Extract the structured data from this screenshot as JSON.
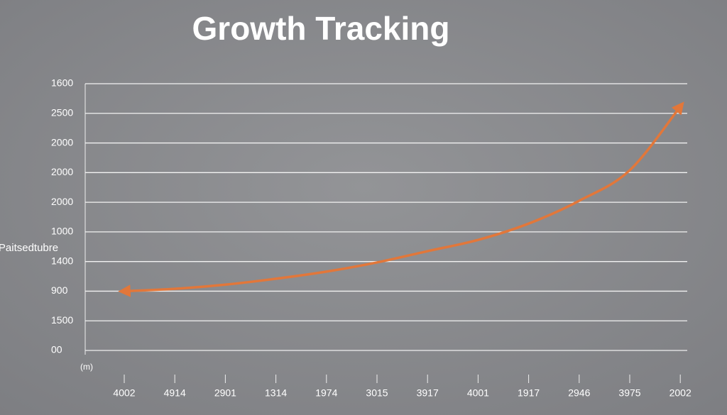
{
  "chart_data": {
    "type": "line",
    "title": "Growth Tracking",
    "y_label": "Paitsedtubre",
    "x_label": "(m)",
    "categories": [
      "4002",
      "4914",
      "2901",
      "1314",
      "1974",
      "3015",
      "3917",
      "4001",
      "1917",
      "2946",
      "3975",
      "2002"
    ],
    "values": [
      2.0,
      2.08,
      2.22,
      2.42,
      2.66,
      2.97,
      3.35,
      3.73,
      4.28,
      5.05,
      6.08,
      8.23
    ],
    "color": "#e2773a",
    "ylim": [
      0,
      9
    ],
    "yticks": [
      {
        "value": 0,
        "label": "00"
      },
      {
        "value": 1,
        "label": "1500"
      },
      {
        "value": 2,
        "label": "900"
      },
      {
        "value": 3,
        "label": "1400"
      },
      {
        "value": 4,
        "label": "1000"
      },
      {
        "value": 5,
        "label": "2000"
      },
      {
        "value": 6,
        "label": "2000"
      },
      {
        "value": 7,
        "label": "2000"
      },
      {
        "value": 8,
        "label": "2500"
      },
      {
        "value": 9,
        "label": "1600"
      }
    ],
    "grid": true
  }
}
